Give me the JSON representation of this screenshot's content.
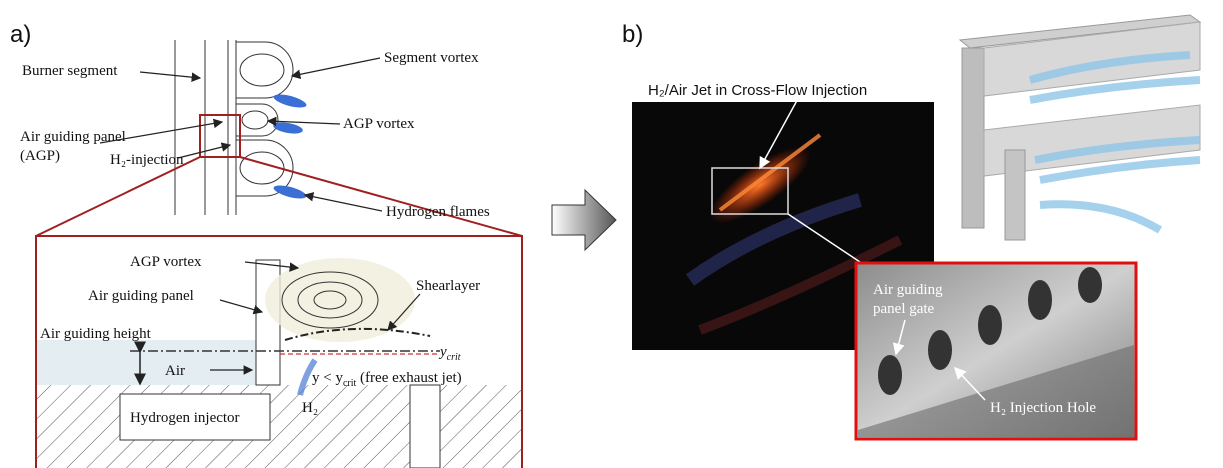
{
  "panel_a": {
    "label": "a)",
    "top_diagram": {
      "burner_segment": "Burner segment",
      "segment_vortex": "Segment vortex",
      "air_guiding_panel": [
        "Air guiding panel",
        "(AGP)"
      ],
      "agp_vortex": "AGP vortex",
      "h2_injection": "H₂-injection",
      "hydrogen_flames": "Hydrogen flames"
    },
    "inset": {
      "agp_vortex": "AGP vortex",
      "air_guiding_panel": "Air guiding panel",
      "shearlayer": "Shearlayer",
      "air_guiding_height": "Air guiding height",
      "y_crit": [
        "y",
        "crit"
      ],
      "air": "Air",
      "free_exhaust_jet": [
        "y < y",
        "crit",
        " (free exhaust jet)"
      ],
      "hydrogen_injector": "Hydrogen injector",
      "h2": "H₂"
    }
  },
  "panel_b": {
    "label": "b)",
    "jet_caption": "H₂/Air Jet in Cross-Flow Injection",
    "photo_labels": {
      "air_guiding_panel_gate": [
        "Air guiding",
        "panel gate"
      ],
      "injection_hole": "H₂ Injection Hole"
    }
  }
}
